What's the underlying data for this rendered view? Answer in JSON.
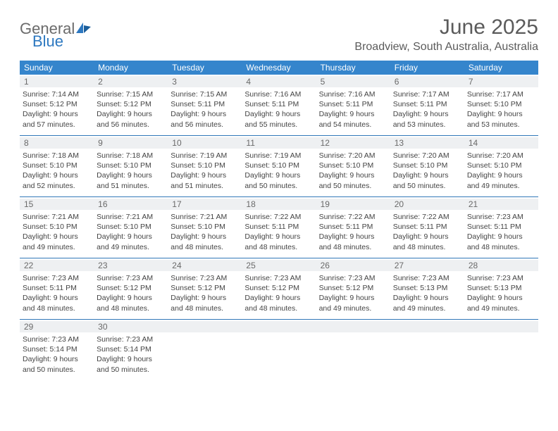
{
  "brand": {
    "word1": "General",
    "word2": "Blue"
  },
  "colors": {
    "header_bg": "#3585cc",
    "header_text": "#ffffff",
    "daynum_bg": "#eef0f2",
    "week_border": "#3077b8",
    "text": "#3a3a3a",
    "title_text": "#5b5b5b",
    "logo_gray": "#6b6b6b",
    "logo_blue": "#2d78c0"
  },
  "title": "June 2025",
  "location": "Broadview, South Australia, Australia",
  "weekdays": [
    "Sunday",
    "Monday",
    "Tuesday",
    "Wednesday",
    "Thursday",
    "Friday",
    "Saturday"
  ],
  "weeks": [
    [
      {
        "n": "1",
        "sr": "Sunrise: 7:14 AM",
        "ss": "Sunset: 5:12 PM",
        "d1": "Daylight: 9 hours",
        "d2": "and 57 minutes."
      },
      {
        "n": "2",
        "sr": "Sunrise: 7:15 AM",
        "ss": "Sunset: 5:12 PM",
        "d1": "Daylight: 9 hours",
        "d2": "and 56 minutes."
      },
      {
        "n": "3",
        "sr": "Sunrise: 7:15 AM",
        "ss": "Sunset: 5:11 PM",
        "d1": "Daylight: 9 hours",
        "d2": "and 56 minutes."
      },
      {
        "n": "4",
        "sr": "Sunrise: 7:16 AM",
        "ss": "Sunset: 5:11 PM",
        "d1": "Daylight: 9 hours",
        "d2": "and 55 minutes."
      },
      {
        "n": "5",
        "sr": "Sunrise: 7:16 AM",
        "ss": "Sunset: 5:11 PM",
        "d1": "Daylight: 9 hours",
        "d2": "and 54 minutes."
      },
      {
        "n": "6",
        "sr": "Sunrise: 7:17 AM",
        "ss": "Sunset: 5:11 PM",
        "d1": "Daylight: 9 hours",
        "d2": "and 53 minutes."
      },
      {
        "n": "7",
        "sr": "Sunrise: 7:17 AM",
        "ss": "Sunset: 5:10 PM",
        "d1": "Daylight: 9 hours",
        "d2": "and 53 minutes."
      }
    ],
    [
      {
        "n": "8",
        "sr": "Sunrise: 7:18 AM",
        "ss": "Sunset: 5:10 PM",
        "d1": "Daylight: 9 hours",
        "d2": "and 52 minutes."
      },
      {
        "n": "9",
        "sr": "Sunrise: 7:18 AM",
        "ss": "Sunset: 5:10 PM",
        "d1": "Daylight: 9 hours",
        "d2": "and 51 minutes."
      },
      {
        "n": "10",
        "sr": "Sunrise: 7:19 AM",
        "ss": "Sunset: 5:10 PM",
        "d1": "Daylight: 9 hours",
        "d2": "and 51 minutes."
      },
      {
        "n": "11",
        "sr": "Sunrise: 7:19 AM",
        "ss": "Sunset: 5:10 PM",
        "d1": "Daylight: 9 hours",
        "d2": "and 50 minutes."
      },
      {
        "n": "12",
        "sr": "Sunrise: 7:20 AM",
        "ss": "Sunset: 5:10 PM",
        "d1": "Daylight: 9 hours",
        "d2": "and 50 minutes."
      },
      {
        "n": "13",
        "sr": "Sunrise: 7:20 AM",
        "ss": "Sunset: 5:10 PM",
        "d1": "Daylight: 9 hours",
        "d2": "and 50 minutes."
      },
      {
        "n": "14",
        "sr": "Sunrise: 7:20 AM",
        "ss": "Sunset: 5:10 PM",
        "d1": "Daylight: 9 hours",
        "d2": "and 49 minutes."
      }
    ],
    [
      {
        "n": "15",
        "sr": "Sunrise: 7:21 AM",
        "ss": "Sunset: 5:10 PM",
        "d1": "Daylight: 9 hours",
        "d2": "and 49 minutes."
      },
      {
        "n": "16",
        "sr": "Sunrise: 7:21 AM",
        "ss": "Sunset: 5:10 PM",
        "d1": "Daylight: 9 hours",
        "d2": "and 49 minutes."
      },
      {
        "n": "17",
        "sr": "Sunrise: 7:21 AM",
        "ss": "Sunset: 5:10 PM",
        "d1": "Daylight: 9 hours",
        "d2": "and 48 minutes."
      },
      {
        "n": "18",
        "sr": "Sunrise: 7:22 AM",
        "ss": "Sunset: 5:11 PM",
        "d1": "Daylight: 9 hours",
        "d2": "and 48 minutes."
      },
      {
        "n": "19",
        "sr": "Sunrise: 7:22 AM",
        "ss": "Sunset: 5:11 PM",
        "d1": "Daylight: 9 hours",
        "d2": "and 48 minutes."
      },
      {
        "n": "20",
        "sr": "Sunrise: 7:22 AM",
        "ss": "Sunset: 5:11 PM",
        "d1": "Daylight: 9 hours",
        "d2": "and 48 minutes."
      },
      {
        "n": "21",
        "sr": "Sunrise: 7:23 AM",
        "ss": "Sunset: 5:11 PM",
        "d1": "Daylight: 9 hours",
        "d2": "and 48 minutes."
      }
    ],
    [
      {
        "n": "22",
        "sr": "Sunrise: 7:23 AM",
        "ss": "Sunset: 5:11 PM",
        "d1": "Daylight: 9 hours",
        "d2": "and 48 minutes."
      },
      {
        "n": "23",
        "sr": "Sunrise: 7:23 AM",
        "ss": "Sunset: 5:12 PM",
        "d1": "Daylight: 9 hours",
        "d2": "and 48 minutes."
      },
      {
        "n": "24",
        "sr": "Sunrise: 7:23 AM",
        "ss": "Sunset: 5:12 PM",
        "d1": "Daylight: 9 hours",
        "d2": "and 48 minutes."
      },
      {
        "n": "25",
        "sr": "Sunrise: 7:23 AM",
        "ss": "Sunset: 5:12 PM",
        "d1": "Daylight: 9 hours",
        "d2": "and 48 minutes."
      },
      {
        "n": "26",
        "sr": "Sunrise: 7:23 AM",
        "ss": "Sunset: 5:12 PM",
        "d1": "Daylight: 9 hours",
        "d2": "and 49 minutes."
      },
      {
        "n": "27",
        "sr": "Sunrise: 7:23 AM",
        "ss": "Sunset: 5:13 PM",
        "d1": "Daylight: 9 hours",
        "d2": "and 49 minutes."
      },
      {
        "n": "28",
        "sr": "Sunrise: 7:23 AM",
        "ss": "Sunset: 5:13 PM",
        "d1": "Daylight: 9 hours",
        "d2": "and 49 minutes."
      }
    ],
    [
      {
        "n": "29",
        "sr": "Sunrise: 7:23 AM",
        "ss": "Sunset: 5:14 PM",
        "d1": "Daylight: 9 hours",
        "d2": "and 50 minutes."
      },
      {
        "n": "30",
        "sr": "Sunrise: 7:23 AM",
        "ss": "Sunset: 5:14 PM",
        "d1": "Daylight: 9 hours",
        "d2": "and 50 minutes."
      },
      null,
      null,
      null,
      null,
      null
    ]
  ]
}
